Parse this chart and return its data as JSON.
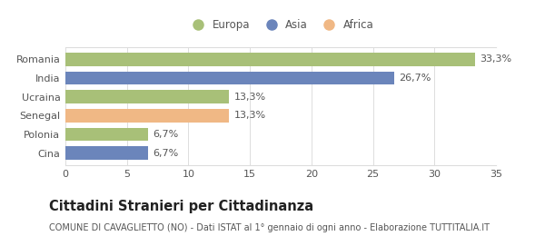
{
  "categories": [
    "Cina",
    "Polonia",
    "Senegal",
    "Ucraina",
    "India",
    "Romania"
  ],
  "values": [
    6.7,
    6.7,
    13.3,
    13.3,
    26.7,
    33.3
  ],
  "labels": [
    "6,7%",
    "6,7%",
    "13,3%",
    "13,3%",
    "26,7%",
    "33,3%"
  ],
  "colors": [
    "#6b85bb",
    "#a8c078",
    "#f0b885",
    "#a8c078",
    "#6b85bb",
    "#a8c078"
  ],
  "legend_items": [
    {
      "label": "Europa",
      "color": "#a8c078"
    },
    {
      "label": "Asia",
      "color": "#6b85bb"
    },
    {
      "label": "Africa",
      "color": "#f0b885"
    }
  ],
  "xlim": [
    0,
    35
  ],
  "xticks": [
    0,
    5,
    10,
    15,
    20,
    25,
    30,
    35
  ],
  "title": "Cittadini Stranieri per Cittadinanza",
  "subtitle": "COMUNE DI CAVAGLIETTO (NO) - Dati ISTAT al 1° gennaio di ogni anno - Elaborazione TUTTITALIA.IT",
  "background_color": "#ffffff",
  "bar_height": 0.72,
  "label_fontsize": 8.0,
  "tick_fontsize": 8.0,
  "title_fontsize": 10.5,
  "subtitle_fontsize": 7.0,
  "legend_fontsize": 8.5,
  "grid_color": "#dddddd",
  "text_color": "#555555",
  "title_color": "#222222"
}
